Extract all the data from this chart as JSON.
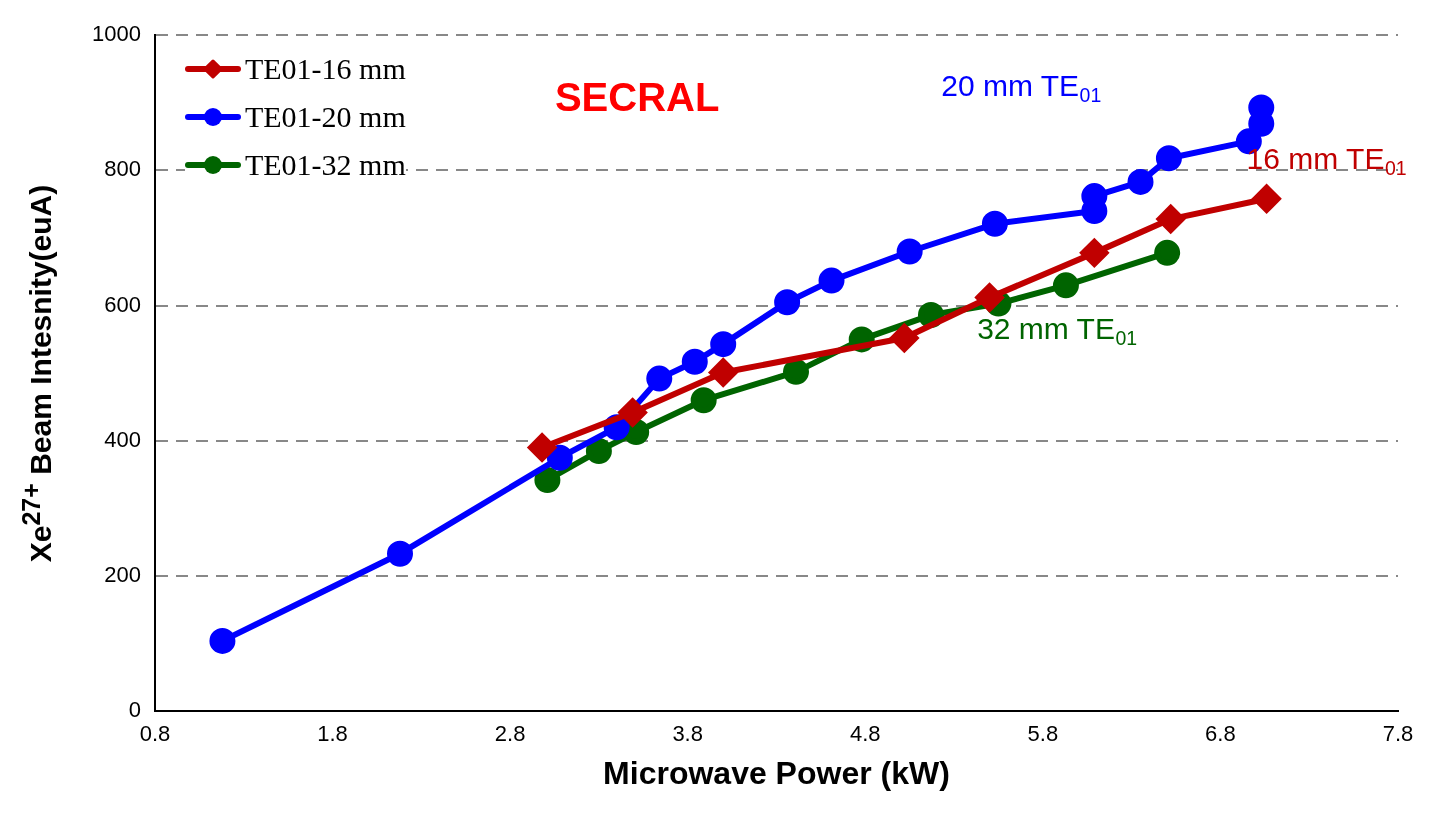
{
  "chart_data": {
    "type": "line",
    "title": "SECRAL",
    "xlabel": "Microwave Power (kW)",
    "ylabel": "Xe$^{27+}$ Beam Intesnity(euA)",
    "xlim": [
      0.8,
      7.8
    ],
    "xticks": [
      0.8,
      1.8,
      2.8,
      3.8,
      4.8,
      5.8,
      6.8,
      7.8
    ],
    "ylim": [
      0,
      1000
    ],
    "yticks": [
      0,
      200,
      400,
      600,
      800,
      1000
    ],
    "grid": "y",
    "legend": "top left",
    "line_style": "solid",
    "series": [
      {
        "name": "TE01-16 mm",
        "color": "#c00000",
        "marker": "diamond",
        "x": [
          2.98,
          3.49,
          4.0,
          5.02,
          5.5,
          6.09,
          6.52,
          7.06
        ],
        "values": [
          390,
          442,
          501,
          552,
          612,
          678,
          728,
          758
        ]
      },
      {
        "name": "TE01-20 mm",
        "color": "#0000ff",
        "marker": "circle",
        "x": [
          1.18,
          2.18,
          3.08,
          3.4,
          3.64,
          3.84,
          4.0,
          4.36,
          4.61,
          5.05,
          5.53,
          6.09,
          6.09,
          6.35,
          6.51,
          6.96,
          7.03,
          7.03
        ],
        "values": [
          104,
          233,
          375,
          420,
          492,
          517,
          543,
          605,
          637,
          680,
          721,
          740,
          762,
          783,
          818,
          843,
          869,
          893
        ]
      },
      {
        "name": "TE01-32 mm",
        "color": "#006400",
        "marker": "circle",
        "x": [
          3.01,
          3.3,
          3.51,
          3.89,
          4.41,
          4.78,
          5.17,
          5.55,
          5.93,
          6.5
        ],
        "values": [
          342,
          385,
          413,
          460,
          502,
          550,
          586,
          603,
          630,
          678
        ]
      }
    ],
    "annotations": [
      "16 mm TE$_{01}$",
      "20 mm TE$_{01}$",
      "32 mm TE$_{01}$"
    ]
  }
}
